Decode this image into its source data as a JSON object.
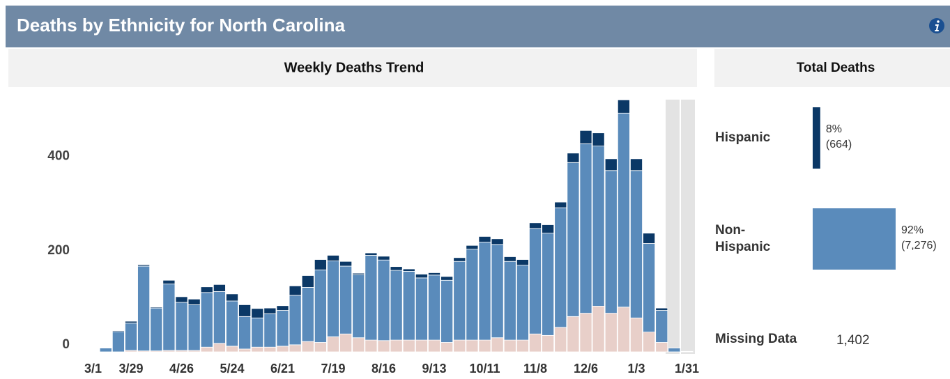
{
  "page": {
    "title": "Deaths by Ethnicity for North Carolina"
  },
  "chart_data": [
    {
      "type": "stacked_bar",
      "title": "Weekly Deaths Trend",
      "categories": [
        "3/1",
        null,
        null,
        null,
        "3/29",
        null,
        null,
        null,
        "4/26",
        null,
        null,
        null,
        "5/24",
        null,
        null,
        null,
        "6/21",
        null,
        null,
        null,
        "7/19",
        null,
        null,
        null,
        "8/16",
        null,
        null,
        null,
        "9/13",
        null,
        null,
        null,
        "10/11",
        null,
        null,
        null,
        "11/8",
        null,
        null,
        null,
        "12/6",
        null,
        null,
        null,
        "1/3",
        null,
        null,
        null,
        "1/31"
      ],
      "series": [
        {
          "color": "#e8cfc9",
          "values": [
            0,
            0,
            0,
            0,
            3,
            2,
            2,
            3,
            3,
            3,
            10,
            18,
            12,
            6,
            10,
            10,
            12,
            15,
            22,
            20,
            32,
            38,
            30,
            25,
            24,
            25,
            25,
            25,
            25,
            20,
            25,
            25,
            25,
            30,
            25,
            25,
            38,
            35,
            52,
            75,
            82,
            97,
            82,
            95,
            72,
            42,
            20,
            0,
            1
          ]
        },
        {
          "color": "#5a8bbb",
          "values": [
            0,
            0,
            8,
            43,
            58,
            180,
            91,
            141,
            102,
            97,
            116,
            110,
            96,
            69,
            62,
            71,
            76,
            105,
            115,
            154,
            161,
            144,
            134,
            180,
            171,
            148,
            146,
            132,
            138,
            132,
            167,
            193,
            208,
            198,
            167,
            159,
            224,
            217,
            254,
            327,
            360,
            340,
            303,
            412,
            313,
            188,
            68,
            8,
            0
          ]
        },
        {
          "color": "#0b3866",
          "values": [
            0,
            0,
            0,
            2,
            4,
            3,
            2,
            8,
            12,
            12,
            12,
            15,
            15,
            25,
            20,
            12,
            10,
            20,
            25,
            22,
            12,
            10,
            3,
            5,
            8,
            8,
            5,
            8,
            5,
            8,
            8,
            8,
            12,
            12,
            10,
            12,
            12,
            18,
            12,
            20,
            28,
            28,
            25,
            28,
            25,
            22,
            5,
            0,
            0
          ]
        }
      ],
      "ylim": [
        0,
        540
      ],
      "yticks": [
        0,
        200,
        400
      ],
      "grid": false
    },
    {
      "type": "share_bar",
      "title": "Total Deaths",
      "categories": [
        "Hispanic",
        "Non-Hispanic"
      ],
      "values": [
        664,
        7276
      ],
      "percent_labels": [
        "8%",
        "92%"
      ],
      "value_labels": [
        "(664)",
        "(7,276)"
      ],
      "colors": [
        "#0b3866",
        "#5a8bbb"
      ],
      "missing_label": "Missing Data",
      "missing_value": 1402,
      "missing_value_label": "1,402"
    }
  ]
}
